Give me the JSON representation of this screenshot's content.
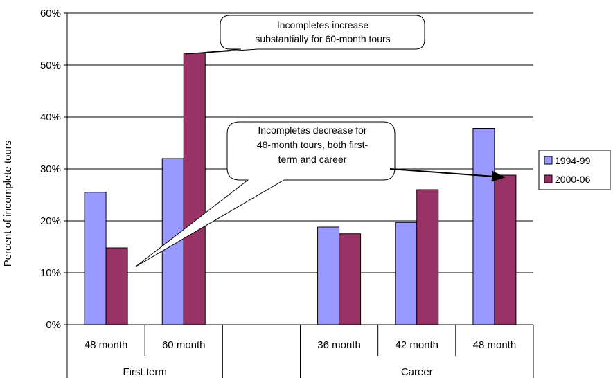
{
  "chart_data": {
    "type": "bar",
    "ylabel": "Percent of incomplete tours",
    "ylim": [
      0,
      60
    ],
    "yticks": [
      "0%",
      "10%",
      "20%",
      "30%",
      "40%",
      "50%",
      "60%"
    ],
    "grid": true,
    "legend_position": "right",
    "groups": [
      {
        "label": "First term",
        "categories": [
          "48 month",
          "60 month"
        ]
      },
      {
        "label": "",
        "categories": [
          ""
        ]
      },
      {
        "label": "Career",
        "categories": [
          "36 month",
          "42 month",
          "48 month"
        ]
      }
    ],
    "categories": [
      "48 month",
      "60 month",
      "",
      "36 month",
      "42 month",
      "48 month"
    ],
    "series": [
      {
        "name": "1994-99",
        "color": "#9999ff",
        "values": [
          25.5,
          32.0,
          null,
          18.8,
          19.7,
          37.8
        ]
      },
      {
        "name": "2000-06",
        "color": "#993366",
        "values": [
          14.8,
          52.3,
          null,
          17.5,
          26.0,
          28.8
        ]
      }
    ],
    "annotations": [
      {
        "lines": [
          "Incompletes increase",
          "substantially for 60-month tours"
        ]
      },
      {
        "lines": [
          "Incompletes decrease for",
          "48-month tours, both first-",
          "term and career"
        ]
      }
    ]
  }
}
